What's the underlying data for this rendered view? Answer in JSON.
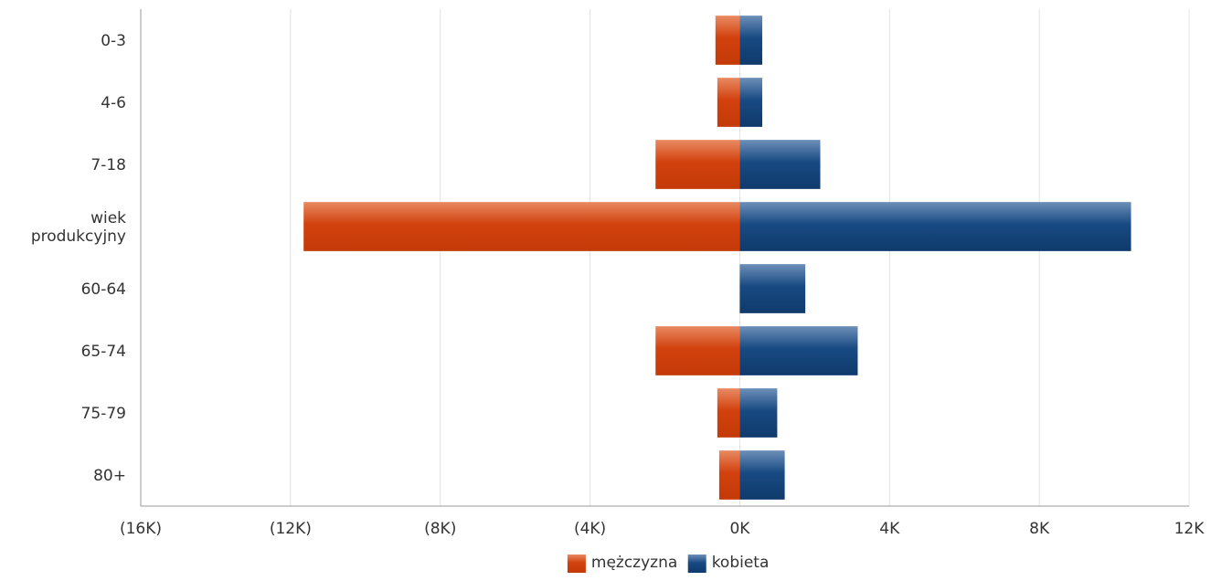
{
  "chart_data": {
    "type": "bar",
    "orientation": "horizontal",
    "stacked": "diverging",
    "categories": [
      "0-3",
      "4-6",
      "7-18",
      "wiek produkcyjny",
      "60-64",
      "65-74",
      "75-79",
      "80+"
    ],
    "category_lines": [
      [
        "0-3"
      ],
      [
        "4-6"
      ],
      [
        "7-18"
      ],
      [
        "wiek",
        "produkcyjny"
      ],
      [
        "60-64"
      ],
      [
        "65-74"
      ],
      [
        "75-79"
      ],
      [
        "80+"
      ]
    ],
    "series": [
      {
        "name": "mężczyzna",
        "values": [
          -650,
          -600,
          -2250,
          -11650,
          0,
          -2250,
          -600,
          -550
        ],
        "color": "#d2410e"
      },
      {
        "name": "kobieta",
        "values": [
          600,
          600,
          2150,
          10450,
          1750,
          3150,
          1000,
          1200
        ],
        "color": "#184a82"
      }
    ],
    "xlim": [
      -16000,
      12000
    ],
    "x_ticks": [
      -16000,
      -12000,
      -8000,
      -4000,
      0,
      4000,
      8000,
      12000
    ],
    "x_tick_labels": [
      "(16K)",
      "(12K)",
      "(8K)",
      "(4K)",
      "0K",
      "4K",
      "8K",
      "12K"
    ],
    "grid": "vertical",
    "legend": "bottom-center"
  }
}
